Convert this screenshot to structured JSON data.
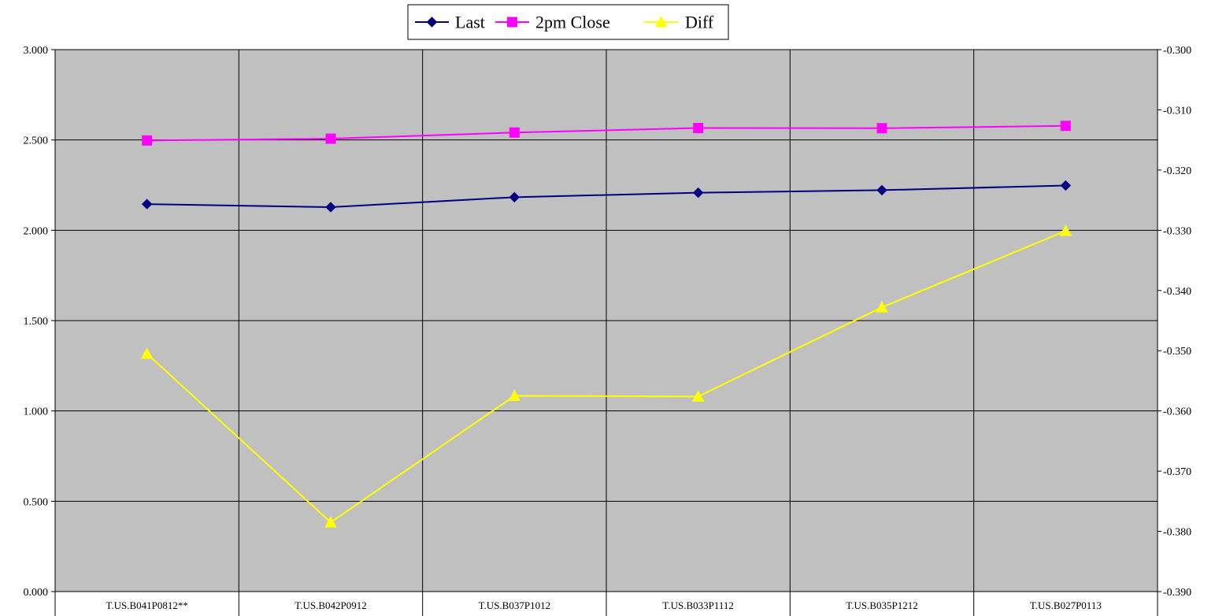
{
  "chart_data": {
    "type": "line",
    "categories": [
      "T.US.B041P0812**",
      "T.US.B042P0912",
      "T.US.B037P1012",
      "T.US.B033P1112",
      "T.US.B035P1212",
      "T.US.B027P0113"
    ],
    "series": [
      {
        "name": "Last",
        "axis": "left",
        "marker": "diamond",
        "color": "#000080",
        "values": [
          2.145,
          2.128,
          2.183,
          2.208,
          2.222,
          2.248
        ]
      },
      {
        "name": "2pm Close",
        "axis": "left",
        "marker": "square",
        "color": "#ff00ff",
        "values": [
          2.497,
          2.507,
          2.541,
          2.566,
          2.565,
          2.578
        ]
      },
      {
        "name": "Diff",
        "axis": "right",
        "marker": "triangle",
        "color": "#ffff00",
        "values": [
          -0.3505,
          -0.3785,
          -0.3575,
          -0.3576,
          -0.3428,
          -0.3301
        ]
      }
    ],
    "y_left": {
      "min": 0.0,
      "max": 3.0,
      "step": 0.5,
      "ticks": [
        "0.000",
        "0.500",
        "1.000",
        "1.500",
        "2.000",
        "2.500",
        "3.000"
      ]
    },
    "y_right": {
      "min": -0.39,
      "max": -0.3,
      "step": 0.01,
      "ticks": [
        "-0.390",
        "-0.380",
        "-0.370",
        "-0.360",
        "-0.350",
        "-0.340",
        "-0.330",
        "-0.320",
        "-0.310",
        "-0.300"
      ]
    },
    "grid": true,
    "legend": "top-center",
    "plot_background": "#c0c0c0",
    "title": "",
    "xlabel": "",
    "ylabel": ""
  }
}
